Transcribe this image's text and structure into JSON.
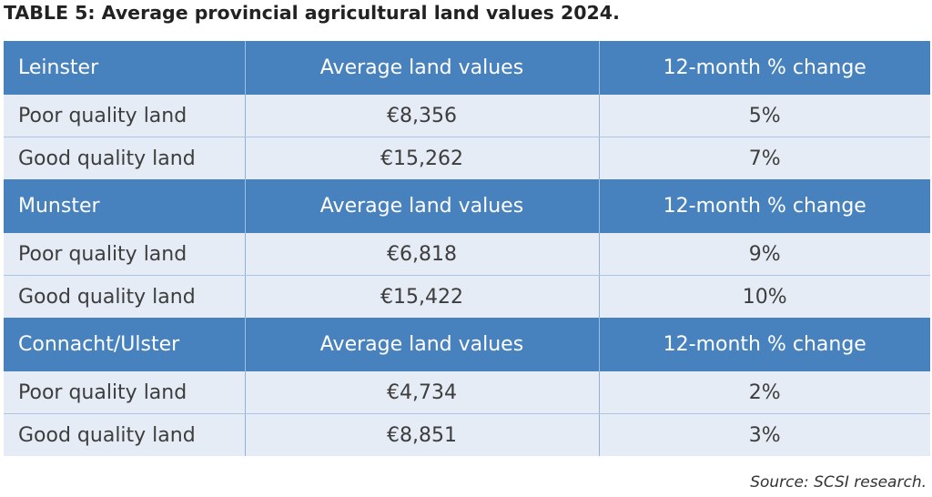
{
  "title": "TABLE 5: Average provincial agricultural land values 2024.",
  "source": "Source: SCSI research.",
  "colors": {
    "header_bg": "#4782bf",
    "row_bg": "#e5ecf5"
  },
  "sections": [
    {
      "region": "Leinster",
      "col2_header": "Average land values",
      "col3_header": "12-month % change",
      "rows": [
        {
          "label": "Poor quality land",
          "value": "€8,356",
          "change": "5%"
        },
        {
          "label": "Good quality land",
          "value": "€15,262",
          "change": "7%"
        }
      ]
    },
    {
      "region": "Munster",
      "col2_header": "Average land values",
      "col3_header": "12-month % change",
      "rows": [
        {
          "label": "Poor quality land",
          "value": "€6,818",
          "change": "9%"
        },
        {
          "label": "Good quality land",
          "value": "€15,422",
          "change": "10%"
        }
      ]
    },
    {
      "region": "Connacht/Ulster",
      "col2_header": "Average land values",
      "col3_header": "12-month % change",
      "rows": [
        {
          "label": "Poor quality land",
          "value": "€4,734",
          "change": "2%"
        },
        {
          "label": "Good quality land",
          "value": "€8,851",
          "change": "3%"
        }
      ]
    }
  ]
}
